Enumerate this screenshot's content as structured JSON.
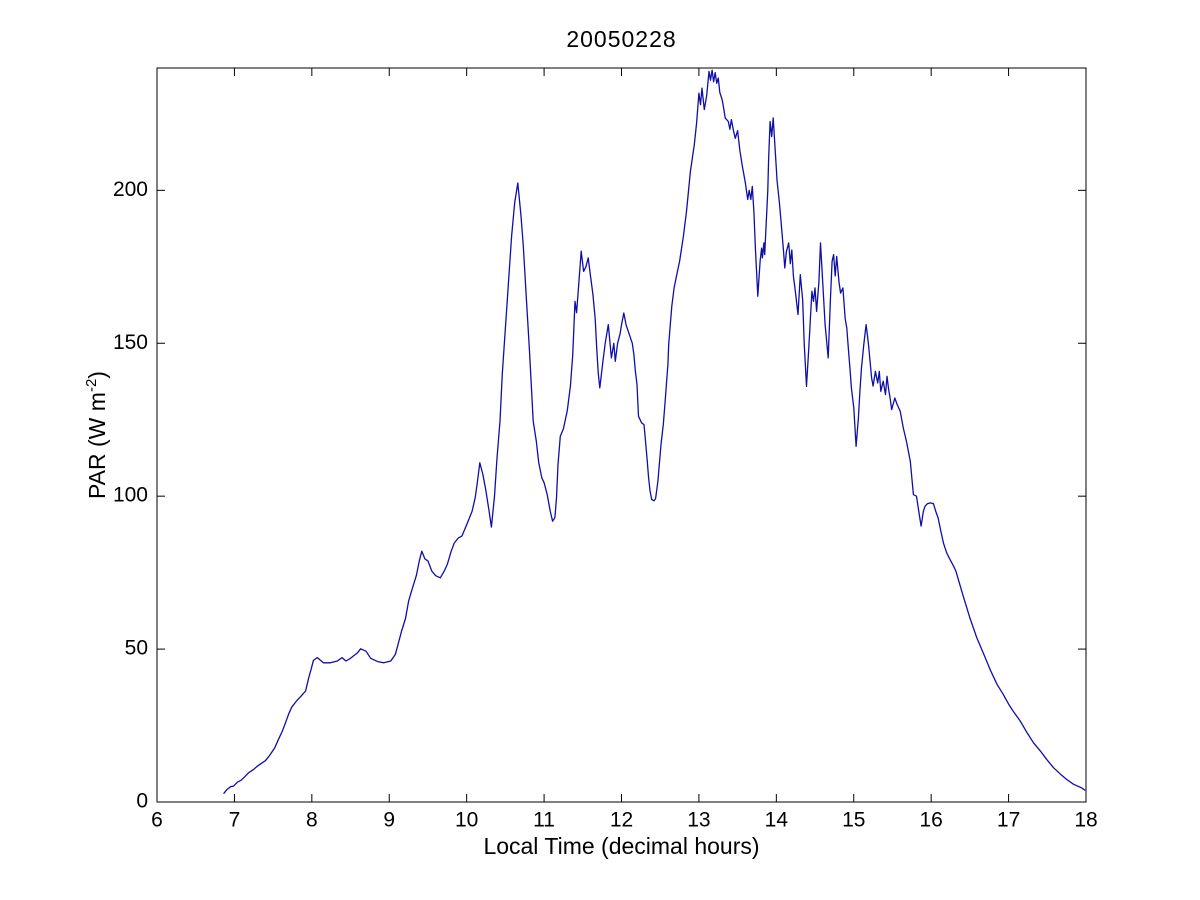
{
  "figure": {
    "background": "#ffffff",
    "axis_color": "#000000"
  },
  "chart_data": {
    "type": "line",
    "title": "20050228",
    "xlabel": "Local Time (decimal hours)",
    "ylabel": "PAR (W m^-2)",
    "ylabel_parts": {
      "pre": "PAR (W m",
      "sup": "-2",
      "post": ")"
    },
    "xlim": [
      6,
      18
    ],
    "ylim": [
      0,
      240
    ],
    "xticks": [
      "6",
      "7",
      "8",
      "9",
      "10",
      "11",
      "12",
      "13",
      "14",
      "15",
      "16",
      "17",
      "18"
    ],
    "yticks": [
      "0",
      "50",
      "100",
      "150",
      "200"
    ],
    "grid": false,
    "legend": null,
    "line_color": "#0f0fa8",
    "series": [
      {
        "name": "PAR",
        "points": [
          [
            6.86,
            2.7
          ],
          [
            6.9,
            4
          ],
          [
            6.95,
            5
          ],
          [
            6.99,
            5.2
          ],
          [
            7.04,
            6.5
          ],
          [
            7.08,
            7
          ],
          [
            7.12,
            7.9
          ],
          [
            7.18,
            9.5
          ],
          [
            7.25,
            10.7
          ],
          [
            7.3,
            11.8
          ],
          [
            7.34,
            12.5
          ],
          [
            7.4,
            13.5
          ],
          [
            7.46,
            15.4
          ],
          [
            7.52,
            17.7
          ],
          [
            7.57,
            20.5
          ],
          [
            7.62,
            23.2
          ],
          [
            7.66,
            25.9
          ],
          [
            7.7,
            28.7
          ],
          [
            7.74,
            31
          ],
          [
            7.8,
            33
          ],
          [
            7.86,
            34.6
          ],
          [
            7.92,
            36.3
          ],
          [
            7.96,
            40.6
          ],
          [
            7.99,
            43.4
          ],
          [
            8.02,
            46.3
          ],
          [
            8.07,
            47.2
          ],
          [
            8.15,
            45.5
          ],
          [
            8.24,
            45.5
          ],
          [
            8.33,
            46.1
          ],
          [
            8.39,
            47.2
          ],
          [
            8.44,
            46.1
          ],
          [
            8.5,
            47
          ],
          [
            8.59,
            48.8
          ],
          [
            8.63,
            50.1
          ],
          [
            8.7,
            49.3
          ],
          [
            8.76,
            47
          ],
          [
            8.85,
            45.9
          ],
          [
            8.93,
            45.5
          ],
          [
            9.02,
            46.1
          ],
          [
            9.08,
            48.3
          ],
          [
            9.16,
            55.9
          ],
          [
            9.21,
            60
          ],
          [
            9.25,
            65.7
          ],
          [
            9.3,
            70
          ],
          [
            9.35,
            74
          ],
          [
            9.39,
            79
          ],
          [
            9.42,
            82
          ],
          [
            9.46,
            79.5
          ],
          [
            9.5,
            78.8
          ],
          [
            9.55,
            75.5
          ],
          [
            9.6,
            74
          ],
          [
            9.66,
            73.3
          ],
          [
            9.71,
            75.5
          ],
          [
            9.75,
            77.7
          ],
          [
            9.8,
            82
          ],
          [
            9.84,
            84.7
          ],
          [
            9.89,
            86.3
          ],
          [
            9.94,
            87
          ],
          [
            10.0,
            90.7
          ],
          [
            10.07,
            95.1
          ],
          [
            10.11,
            99.5
          ],
          [
            10.14,
            104.9
          ],
          [
            10.17,
            110.9
          ],
          [
            10.21,
            107.1
          ],
          [
            10.25,
            101.6
          ],
          [
            10.29,
            95.1
          ],
          [
            10.32,
            89.9
          ],
          [
            10.36,
            100
          ],
          [
            10.39,
            112
          ],
          [
            10.43,
            124.5
          ],
          [
            10.46,
            140
          ],
          [
            10.5,
            155
          ],
          [
            10.54,
            170
          ],
          [
            10.58,
            185
          ],
          [
            10.62,
            196
          ],
          [
            10.66,
            202.4
          ],
          [
            10.7,
            192
          ],
          [
            10.73,
            182.3
          ],
          [
            10.77,
            165
          ],
          [
            10.81,
            148
          ],
          [
            10.86,
            124.5
          ],
          [
            10.9,
            118
          ],
          [
            10.93,
            111
          ],
          [
            10.97,
            106
          ],
          [
            11.0,
            104.4
          ],
          [
            11.04,
            100.5
          ],
          [
            11.08,
            95
          ],
          [
            11.11,
            91.8
          ],
          [
            11.14,
            93
          ],
          [
            11.16,
            99.5
          ],
          [
            11.18,
            110.3
          ],
          [
            11.21,
            119.6
          ],
          [
            11.25,
            122
          ],
          [
            11.3,
            128
          ],
          [
            11.34,
            136
          ],
          [
            11.37,
            146
          ],
          [
            11.4,
            163.7
          ],
          [
            11.42,
            160
          ],
          [
            11.45,
            170
          ],
          [
            11.48,
            180.1
          ],
          [
            11.51,
            173.5
          ],
          [
            11.54,
            175
          ],
          [
            11.57,
            177.9
          ],
          [
            11.6,
            172
          ],
          [
            11.63,
            166
          ],
          [
            11.66,
            158
          ],
          [
            11.68,
            148.5
          ],
          [
            11.7,
            140
          ],
          [
            11.72,
            135.4
          ],
          [
            11.76,
            144
          ],
          [
            11.79,
            150
          ],
          [
            11.83,
            156.1
          ],
          [
            11.87,
            145.2
          ],
          [
            11.9,
            150
          ],
          [
            11.92,
            144.1
          ],
          [
            11.95,
            150
          ],
          [
            11.98,
            153
          ],
          [
            12.0,
            156
          ],
          [
            12.03,
            159.9
          ],
          [
            12.06,
            156
          ],
          [
            12.1,
            153
          ],
          [
            12.14,
            150
          ],
          [
            12.16,
            146.3
          ],
          [
            12.18,
            140.8
          ],
          [
            12.2,
            136.5
          ],
          [
            12.22,
            126.1
          ],
          [
            12.26,
            124
          ],
          [
            12.29,
            123.4
          ],
          [
            12.31,
            118
          ],
          [
            12.33,
            112.5
          ],
          [
            12.35,
            106
          ],
          [
            12.37,
            101.6
          ],
          [
            12.39,
            98.9
          ],
          [
            12.42,
            98.5
          ],
          [
            12.44,
            99.2
          ],
          [
            12.47,
            104.9
          ],
          [
            12.51,
            116.9
          ],
          [
            12.54,
            123.4
          ],
          [
            12.56,
            130
          ],
          [
            12.58,
            136.5
          ],
          [
            12.6,
            143
          ],
          [
            12.61,
            149.6
          ],
          [
            12.63,
            156.1
          ],
          [
            12.65,
            162.1
          ],
          [
            12.68,
            168.1
          ],
          [
            12.71,
            172
          ],
          [
            12.75,
            176.8
          ],
          [
            12.8,
            185
          ],
          [
            12.84,
            193.1
          ],
          [
            12.89,
            206.2
          ],
          [
            12.94,
            214.9
          ],
          [
            12.97,
            222
          ],
          [
            13.0,
            231.8
          ],
          [
            13.02,
            228
          ],
          [
            13.04,
            233.4
          ],
          [
            13.07,
            226.4
          ],
          [
            13.1,
            231
          ],
          [
            13.13,
            238.9
          ],
          [
            13.15,
            236
          ],
          [
            13.17,
            239.3
          ],
          [
            13.19,
            235.5
          ],
          [
            13.21,
            238.5
          ],
          [
            13.23,
            235
          ],
          [
            13.25,
            236.7
          ],
          [
            13.27,
            232
          ],
          [
            13.3,
            229.7
          ],
          [
            13.32,
            226.8
          ],
          [
            13.34,
            223.7
          ],
          [
            13.38,
            222.5
          ],
          [
            13.4,
            220
          ],
          [
            13.42,
            223.1
          ],
          [
            13.45,
            219
          ],
          [
            13.47,
            217
          ],
          [
            13.5,
            219.5
          ],
          [
            13.53,
            213
          ],
          [
            13.56,
            208
          ],
          [
            13.6,
            202.4
          ],
          [
            13.63,
            197
          ],
          [
            13.65,
            200
          ],
          [
            13.67,
            197
          ],
          [
            13.69,
            201.3
          ],
          [
            13.71,
            193
          ],
          [
            13.73,
            181
          ],
          [
            13.76,
            165.4
          ],
          [
            13.79,
            176.8
          ],
          [
            13.81,
            181.1
          ],
          [
            13.82,
            177.9
          ],
          [
            13.84,
            182.8
          ],
          [
            13.85,
            179
          ],
          [
            13.87,
            189.9
          ],
          [
            13.89,
            200
          ],
          [
            13.9,
            210
          ],
          [
            13.92,
            222.5
          ],
          [
            13.94,
            217.6
          ],
          [
            13.96,
            223.7
          ],
          [
            13.99,
            211
          ],
          [
            14.01,
            203
          ],
          [
            14.04,
            196
          ],
          [
            14.06,
            190
          ],
          [
            14.09,
            181
          ],
          [
            14.11,
            174.6
          ],
          [
            14.13,
            180
          ],
          [
            14.16,
            182.8
          ],
          [
            14.18,
            176
          ],
          [
            14.2,
            180.5
          ],
          [
            14.22,
            172
          ],
          [
            14.25,
            166
          ],
          [
            14.28,
            159.4
          ],
          [
            14.31,
            172.4
          ],
          [
            14.34,
            164
          ],
          [
            14.36,
            150
          ],
          [
            14.39,
            135.9
          ],
          [
            14.42,
            148.5
          ],
          [
            14.46,
            167
          ],
          [
            14.48,
            163.7
          ],
          [
            14.5,
            168.1
          ],
          [
            14.52,
            160.4
          ],
          [
            14.55,
            170
          ],
          [
            14.57,
            182.8
          ],
          [
            14.61,
            164.8
          ],
          [
            14.63,
            156.1
          ],
          [
            14.67,
            145.2
          ],
          [
            14.7,
            165
          ],
          [
            14.72,
            176.8
          ],
          [
            14.74,
            179
          ],
          [
            14.76,
            172
          ],
          [
            14.78,
            178.4
          ],
          [
            14.81,
            170
          ],
          [
            14.83,
            166.4
          ],
          [
            14.86,
            168.1
          ],
          [
            14.89,
            158
          ],
          [
            14.91,
            155
          ],
          [
            14.93,
            148.5
          ],
          [
            14.95,
            142
          ],
          [
            14.97,
            135.4
          ],
          [
            15.0,
            128.9
          ],
          [
            15.03,
            116.3
          ],
          [
            15.06,
            125.6
          ],
          [
            15.08,
            134.3
          ],
          [
            15.1,
            142
          ],
          [
            15.13,
            149.6
          ],
          [
            15.16,
            156.1
          ],
          [
            15.19,
            149.6
          ],
          [
            15.23,
            138.7
          ],
          [
            15.25,
            136
          ],
          [
            15.28,
            140.8
          ],
          [
            15.31,
            137
          ],
          [
            15.33,
            140.8
          ],
          [
            15.35,
            134.3
          ],
          [
            15.38,
            137.6
          ],
          [
            15.41,
            133.2
          ],
          [
            15.43,
            139.2
          ],
          [
            15.45,
            135
          ],
          [
            15.47,
            132.1
          ],
          [
            15.49,
            128.3
          ],
          [
            15.53,
            132.1
          ],
          [
            15.56,
            130
          ],
          [
            15.6,
            127.8
          ],
          [
            15.64,
            122.3
          ],
          [
            15.68,
            118
          ],
          [
            15.73,
            111.4
          ],
          [
            15.77,
            100.5
          ],
          [
            15.81,
            100
          ],
          [
            15.84,
            95
          ],
          [
            15.87,
            90.2
          ],
          [
            15.9,
            95.1
          ],
          [
            15.92,
            96.7
          ],
          [
            15.95,
            97.5
          ],
          [
            15.99,
            97.8
          ],
          [
            16.03,
            97.5
          ],
          [
            16.06,
            95
          ],
          [
            16.09,
            92.9
          ],
          [
            16.13,
            88
          ],
          [
            16.16,
            84.5
          ],
          [
            16.2,
            81.5
          ],
          [
            16.24,
            79.5
          ],
          [
            16.29,
            77.1
          ],
          [
            16.32,
            75.5
          ],
          [
            16.35,
            72.8
          ],
          [
            16.42,
            66.8
          ],
          [
            16.5,
            60.2
          ],
          [
            16.59,
            53.7
          ],
          [
            16.68,
            48.3
          ],
          [
            16.76,
            43.4
          ],
          [
            16.85,
            38.5
          ],
          [
            16.93,
            35.2
          ],
          [
            17.0,
            32
          ],
          [
            17.06,
            29.7
          ],
          [
            17.15,
            26.5
          ],
          [
            17.24,
            22.6
          ],
          [
            17.32,
            19.4
          ],
          [
            17.41,
            16.7
          ],
          [
            17.49,
            14
          ],
          [
            17.58,
            11.2
          ],
          [
            17.67,
            9.1
          ],
          [
            17.75,
            7.4
          ],
          [
            17.84,
            5.8
          ],
          [
            17.91,
            5
          ],
          [
            17.95,
            4.5
          ],
          [
            17.99,
            3.8
          ]
        ]
      }
    ]
  }
}
